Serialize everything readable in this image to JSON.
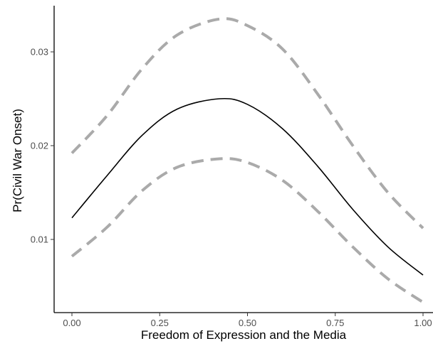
{
  "chart_data": {
    "type": "line",
    "title": "",
    "xlabel": "Freedom of Expression and the Media",
    "ylabel": "Pr(Civil War Onset)",
    "xlim": [
      -0.05,
      1.02
    ],
    "ylim": [
      0.0025,
      0.0353
    ],
    "x_ticks": [
      0.0,
      0.25,
      0.5,
      0.75,
      1.0
    ],
    "x_tick_labels": [
      "0.00",
      "0.25",
      "0.50",
      "0.75",
      "1.00"
    ],
    "y_ticks": [
      0.01,
      0.02,
      0.03
    ],
    "y_tick_labels": [
      "0.01",
      "0.02",
      "0.03"
    ],
    "grid": false,
    "legend": "none",
    "x": [
      0.0,
      0.1,
      0.2,
      0.3,
      0.42,
      0.5,
      0.6,
      0.7,
      0.8,
      0.9,
      1.0
    ],
    "series": [
      {
        "role": "estimate",
        "style": "solid",
        "color": "#000000",
        "values": [
          0.0123,
          0.0168,
          0.0211,
          0.0239,
          0.025,
          0.0244,
          0.0218,
          0.0178,
          0.0132,
          0.0092,
          0.0062
        ]
      },
      {
        "role": "upper",
        "style": "dashed",
        "color": "#aaaaaa",
        "values": [
          0.0192,
          0.0232,
          0.0282,
          0.0318,
          0.0335,
          0.0328,
          0.0303,
          0.0255,
          0.02,
          0.015,
          0.0112
        ]
      },
      {
        "role": "lower",
        "style": "dashed",
        "color": "#aaaaaa",
        "values": [
          0.0082,
          0.0113,
          0.0152,
          0.0177,
          0.0186,
          0.0182,
          0.0163,
          0.013,
          0.0092,
          0.0058,
          0.0033
        ]
      }
    ]
  }
}
